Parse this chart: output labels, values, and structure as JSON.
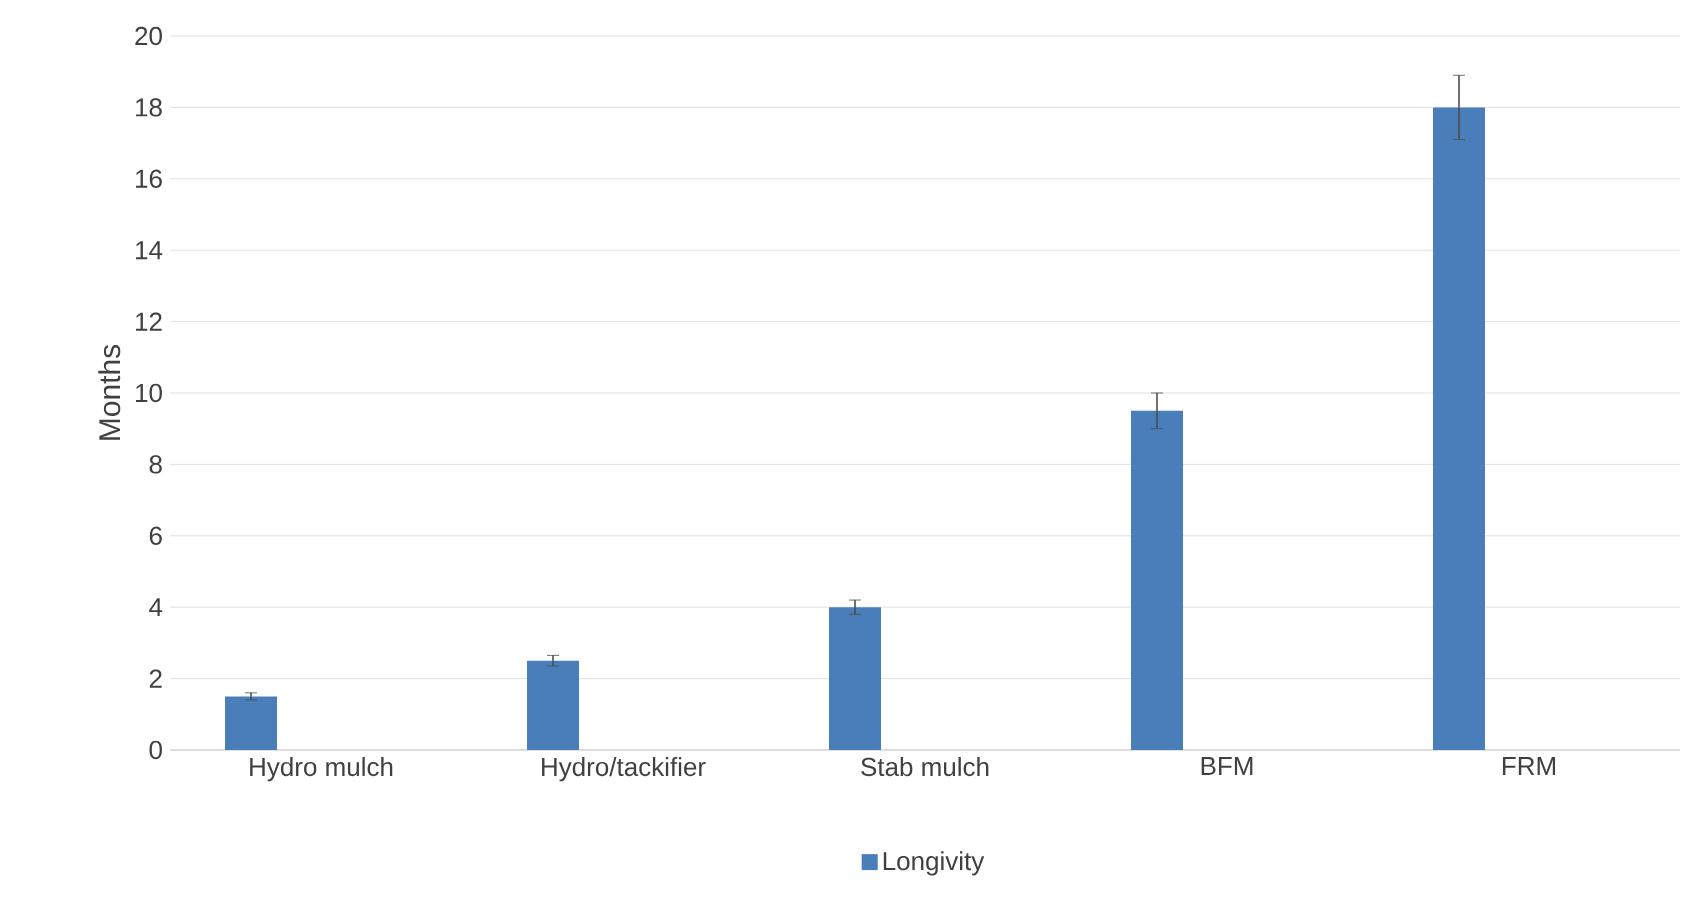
{
  "chart_data": {
    "type": "bar",
    "ylabel": "Months",
    "categories": [
      "Hydro mulch",
      "Hydro/tackifier",
      "Stab mulch",
      "BFM",
      "FRM"
    ],
    "series": [
      {
        "name": "Longivity",
        "color": "#4a7ebb",
        "values": [
          1.5,
          2.5,
          4,
          9.5,
          18
        ],
        "errors": [
          0.1,
          0.15,
          0.2,
          0.5,
          0.9
        ]
      }
    ],
    "ylim": [
      0,
      20
    ],
    "yticks": [
      0,
      2,
      4,
      6,
      8,
      10,
      12,
      14,
      16,
      18,
      20
    ],
    "grid": "y",
    "legend": "bottom"
  }
}
